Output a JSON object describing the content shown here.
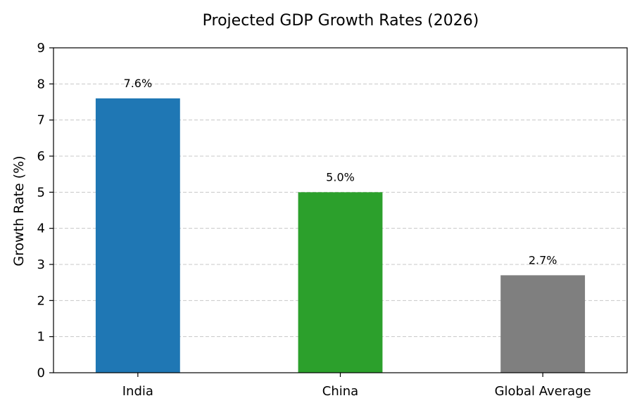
{
  "chart_data": {
    "type": "bar",
    "title": "Projected GDP Growth Rates (2026)",
    "xlabel": "",
    "ylabel": "Growth Rate (%)",
    "categories": [
      "India",
      "China",
      "Global Average"
    ],
    "values": [
      7.6,
      5.0,
      2.7
    ],
    "data_labels": [
      "7.6%",
      "5.0%",
      "2.7%"
    ],
    "colors": [
      "#1f77b4",
      "#2ca02c",
      "#7f7f7f"
    ],
    "ylim": [
      0,
      9
    ],
    "yticks": [
      0,
      1,
      2,
      3,
      4,
      5,
      6,
      7,
      8,
      9
    ],
    "grid": "horizontal dashed",
    "legend": "none"
  }
}
